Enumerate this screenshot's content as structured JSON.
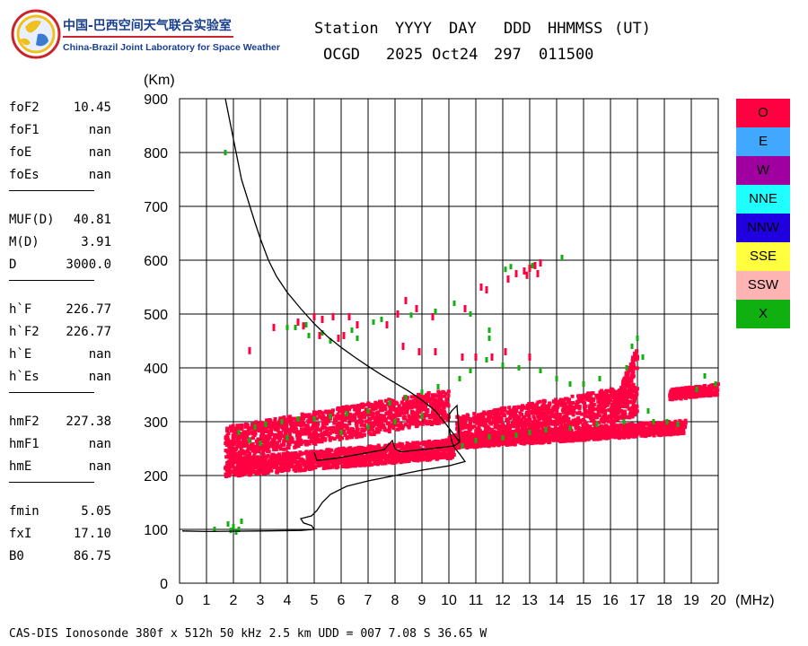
{
  "header": {
    "labels": [
      "Station",
      "YYYY",
      "DAY",
      "DDD",
      "HHMMSS",
      "(UT)"
    ],
    "values": [
      "OCGD",
      "2025 Oct24",
      "297",
      "011500"
    ]
  },
  "logo": {
    "cn": "中国-巴西空间天气联合实验室",
    "en": "China-Brazil Joint Laboratory for Space Weather"
  },
  "params": {
    "group1": [
      [
        "foF2",
        "10.45"
      ],
      [
        "foF1",
        "nan"
      ],
      [
        "foE",
        "nan"
      ],
      [
        "foEs",
        "nan"
      ]
    ],
    "group2": [
      [
        "MUF(D)",
        "40.81"
      ],
      [
        "M(D)",
        "3.91"
      ],
      [
        "D",
        "3000.0"
      ]
    ],
    "group3": [
      [
        "h`F",
        "226.77"
      ],
      [
        "h`F2",
        "226.77"
      ],
      [
        "h`E",
        "nan"
      ],
      [
        "h`Es",
        "nan"
      ]
    ],
    "group4": [
      [
        "hmF2",
        "227.38"
      ],
      [
        "hmF1",
        "nan"
      ],
      [
        "hmE",
        "nan"
      ]
    ],
    "group5": [
      [
        "fmin",
        "5.05"
      ],
      [
        "fxI",
        "17.10"
      ],
      [
        "B0",
        "86.75"
      ]
    ]
  },
  "legend": [
    {
      "label": "O",
      "color": "#ff0040"
    },
    {
      "label": "E",
      "color": "#40a8ff"
    },
    {
      "label": "W",
      "color": "#a000a0"
    },
    {
      "label": "NNE",
      "color": "#20ffff"
    },
    {
      "label": "NNW",
      "color": "#2000e0"
    },
    {
      "label": "SSE",
      "color": "#ffff40"
    },
    {
      "label": "SSW",
      "color": "#ffb4b4"
    },
    {
      "label": "X",
      "color": "#10b010"
    }
  ],
  "footer": "CAS-DIS Ionosonde 380f x 512h 50 kHz 2.5 km UDD = 007 7.08 S 36.65 W",
  "chart_data": {
    "type": "scatter",
    "title": "",
    "xlabel": "(MHz)",
    "ylabel": "(Km)",
    "xlim": [
      0,
      20
    ],
    "ylim": [
      0,
      900
    ],
    "xticks": [
      0,
      1,
      2,
      3,
      4,
      5,
      6,
      7,
      8,
      9,
      10,
      11,
      12,
      13,
      14,
      15,
      16,
      17,
      18,
      19,
      20
    ],
    "yticks": [
      0,
      100,
      200,
      300,
      400,
      500,
      600,
      700,
      800,
      900
    ],
    "grid": true,
    "series": [
      {
        "name": "O",
        "color": "#ff0040",
        "echo_bands": [
          {
            "f0": 1.7,
            "h0": 215,
            "f1": 10.2,
            "h1": 250,
            "width": 35
          },
          {
            "f0": 1.7,
            "h0": 260,
            "f1": 10.0,
            "h1": 330,
            "width": 60
          },
          {
            "f0": 10.0,
            "h0": 262,
            "f1": 18.8,
            "h1": 290,
            "width": 25
          },
          {
            "f0": 10.3,
            "h0": 280,
            "f1": 17.0,
            "h1": 340,
            "width": 60
          },
          {
            "f0": 16.0,
            "h0": 300,
            "f1": 17.0,
            "h1": 420,
            "width": 40
          },
          {
            "f0": 18.2,
            "h0": 350,
            "f1": 20.0,
            "h1": 360,
            "width": 20
          }
        ],
        "points": [
          [
            2.6,
            432
          ],
          [
            3.5,
            475
          ],
          [
            4.4,
            485
          ],
          [
            4.6,
            478
          ],
          [
            5.0,
            495
          ],
          [
            5.3,
            490
          ],
          [
            5.7,
            495
          ],
          [
            6.3,
            495
          ],
          [
            6.6,
            480
          ],
          [
            5.2,
            460
          ],
          [
            5.9,
            455
          ],
          [
            6.1,
            460
          ],
          [
            7.7,
            480
          ],
          [
            8.1,
            500
          ],
          [
            8.4,
            525
          ],
          [
            8.8,
            510
          ],
          [
            9.4,
            495
          ],
          [
            10.6,
            510
          ],
          [
            11.2,
            550
          ],
          [
            11.4,
            545
          ],
          [
            12.2,
            565
          ],
          [
            12.5,
            575
          ],
          [
            12.8,
            580
          ],
          [
            13.0,
            585
          ],
          [
            13.2,
            590
          ],
          [
            13.4,
            595
          ],
          [
            12.9,
            572
          ],
          [
            13.3,
            575
          ],
          [
            8.3,
            440
          ],
          [
            8.9,
            430
          ],
          [
            9.5,
            430
          ],
          [
            10.5,
            420
          ],
          [
            11.0,
            420
          ],
          [
            11.6,
            420
          ],
          [
            12.1,
            430
          ],
          [
            13.0,
            420
          ]
        ]
      },
      {
        "name": "X",
        "color": "#10b010",
        "points": [
          [
            1.7,
            800
          ],
          [
            1.3,
            100
          ],
          [
            1.8,
            110
          ],
          [
            2.0,
            105
          ],
          [
            2.2,
            100
          ],
          [
            2.3,
            115
          ],
          [
            2.1,
            95
          ],
          [
            1.9,
            98
          ],
          [
            4.0,
            475
          ],
          [
            4.3,
            475
          ],
          [
            4.7,
            480
          ],
          [
            4.8,
            460
          ],
          [
            5.3,
            465
          ],
          [
            5.6,
            450
          ],
          [
            6.4,
            470
          ],
          [
            6.6,
            455
          ],
          [
            7.2,
            485
          ],
          [
            7.5,
            490
          ],
          [
            8.6,
            498
          ],
          [
            9.5,
            505
          ],
          [
            10.2,
            520
          ],
          [
            10.8,
            500
          ],
          [
            11.5,
            470
          ],
          [
            11.5,
            455
          ],
          [
            12.1,
            583
          ],
          [
            12.3,
            588
          ],
          [
            13.1,
            590
          ],
          [
            14.2,
            605
          ],
          [
            2.8,
            290
          ],
          [
            3.2,
            295
          ],
          [
            3.8,
            300
          ],
          [
            4.4,
            305
          ],
          [
            5.0,
            305
          ],
          [
            5.6,
            310
          ],
          [
            6.2,
            315
          ],
          [
            7.0,
            320
          ],
          [
            7.8,
            335
          ],
          [
            8.4,
            345
          ],
          [
            9.0,
            355
          ],
          [
            9.6,
            365
          ],
          [
            10.4,
            380
          ],
          [
            10.8,
            395
          ],
          [
            11.4,
            415
          ],
          [
            12.0,
            405
          ],
          [
            12.6,
            400
          ],
          [
            13.4,
            395
          ],
          [
            14.0,
            380
          ],
          [
            14.5,
            370
          ],
          [
            15.0,
            370
          ],
          [
            15.6,
            380
          ],
          [
            16.6,
            400
          ],
          [
            16.8,
            440
          ],
          [
            17.0,
            455
          ],
          [
            17.2,
            420
          ],
          [
            17.4,
            320
          ],
          [
            17.6,
            300
          ],
          [
            18.1,
            300
          ],
          [
            18.5,
            295
          ],
          [
            19.2,
            360
          ],
          [
            19.9,
            370
          ],
          [
            19.5,
            385
          ],
          [
            10.5,
            255
          ],
          [
            11.0,
            265
          ],
          [
            11.5,
            272
          ],
          [
            12.0,
            270
          ],
          [
            12.5,
            275
          ],
          [
            13.0,
            280
          ],
          [
            13.6,
            285
          ],
          [
            14.5,
            288
          ],
          [
            15.5,
            295
          ],
          [
            16.5,
            300
          ],
          [
            2.2,
            280
          ],
          [
            2.6,
            265
          ],
          [
            3.0,
            260
          ],
          [
            4.0,
            270
          ],
          [
            6.0,
            280
          ],
          [
            7.0,
            290
          ],
          [
            8.0,
            300
          ],
          [
            9.0,
            310
          ]
        ]
      }
    ],
    "virtual_height_curve": [
      [
        1.7,
        900
      ],
      [
        2.3,
        750
      ],
      [
        2.8,
        670
      ],
      [
        3.0,
        640
      ],
      [
        3.3,
        600
      ],
      [
        3.6,
        570
      ],
      [
        4.0,
        540
      ],
      [
        4.5,
        510
      ],
      [
        5.0,
        482
      ],
      [
        5.5,
        458
      ],
      [
        6.0,
        438
      ],
      [
        6.5,
        420
      ],
      [
        7.0,
        403
      ],
      [
        7.5,
        387
      ],
      [
        8.0,
        372
      ],
      [
        8.5,
        357
      ],
      [
        9.0,
        340
      ],
      [
        9.5,
        320
      ],
      [
        9.9,
        295
      ],
      [
        10.2,
        275
      ],
      [
        10.4,
        262
      ]
    ],
    "true_height_curve": [
      [
        0.1,
        97
      ],
      [
        1.0,
        96
      ],
      [
        3.0,
        97
      ],
      [
        4.5,
        98
      ],
      [
        5.0,
        100
      ],
      [
        4.9,
        107
      ],
      [
        4.6,
        112
      ],
      [
        4.5,
        120
      ],
      [
        4.9,
        125
      ],
      [
        5.1,
        135
      ],
      [
        5.3,
        150
      ],
      [
        5.6,
        165
      ],
      [
        6.2,
        180
      ],
      [
        7.0,
        190
      ],
      [
        8.0,
        200
      ],
      [
        9.0,
        210
      ],
      [
        10.0,
        218
      ],
      [
        10.6,
        226
      ],
      [
        10.4,
        240
      ],
      [
        10.2,
        252
      ],
      [
        10.1,
        265
      ],
      [
        10.0,
        290
      ],
      [
        10.0,
        312
      ],
      [
        10.1,
        320
      ],
      [
        10.3,
        330
      ],
      [
        10.4,
        262
      ],
      [
        10.2,
        255
      ],
      [
        9.0,
        248
      ],
      [
        8.2,
        244
      ],
      [
        8.0,
        250
      ],
      [
        7.9,
        265
      ],
      [
        7.6,
        248
      ],
      [
        6.5,
        238
      ],
      [
        5.8,
        232
      ],
      [
        5.1,
        228
      ],
      [
        5.0,
        243
      ]
    ]
  }
}
